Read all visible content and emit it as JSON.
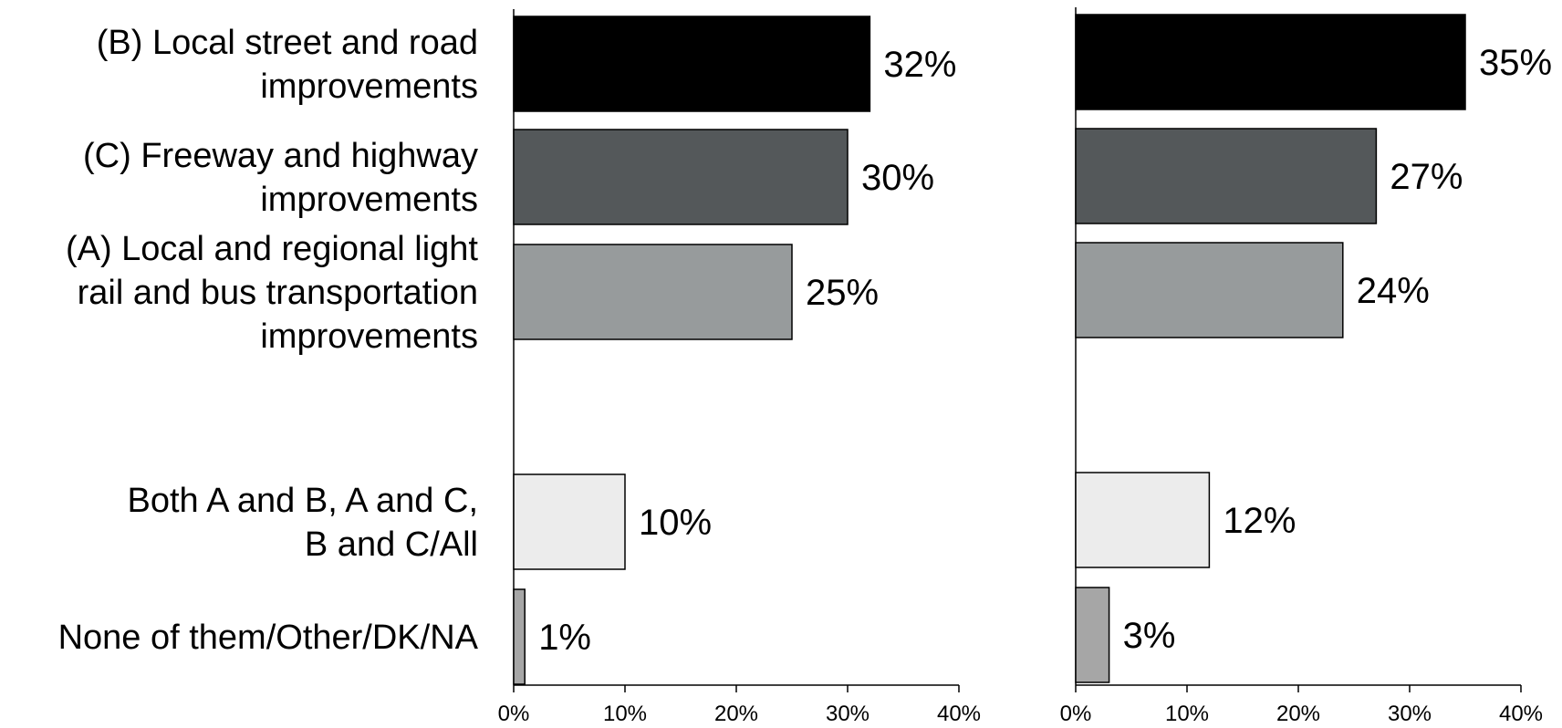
{
  "chart_data": {
    "type": "bar",
    "orientation": "horizontal",
    "categories": [
      [
        "(B) Local street and road",
        "improvements"
      ],
      [
        "(C) Freeway and highway",
        "improvements"
      ],
      [
        "(A) Local and regional light",
        "rail and bus transportation",
        "improvements"
      ],
      [
        "Both A and B, A and C,",
        "B and C/All"
      ],
      [
        "None of them/Other/DK/NA"
      ]
    ],
    "bar_colors": [
      "#000000",
      "#54585a",
      "#979b9c",
      "#ececec",
      "#a6a6a6"
    ],
    "panels": [
      {
        "values": [
          32,
          30,
          25,
          10,
          1
        ],
        "value_labels": [
          "32%",
          "30%",
          "25%",
          "10%",
          "1%"
        ]
      },
      {
        "values": [
          35,
          27,
          24,
          12,
          3
        ],
        "value_labels": [
          "35%",
          "27%",
          "24%",
          "12%",
          "3%"
        ]
      }
    ],
    "xlim": [
      0,
      40
    ],
    "ticks": [
      0,
      10,
      20,
      30,
      40
    ],
    "tick_labels": [
      "0%",
      "10%",
      "20%",
      "30%",
      "40%"
    ],
    "title": "",
    "xlabel": "",
    "ylabel": "",
    "grid": false,
    "legend": "none"
  }
}
